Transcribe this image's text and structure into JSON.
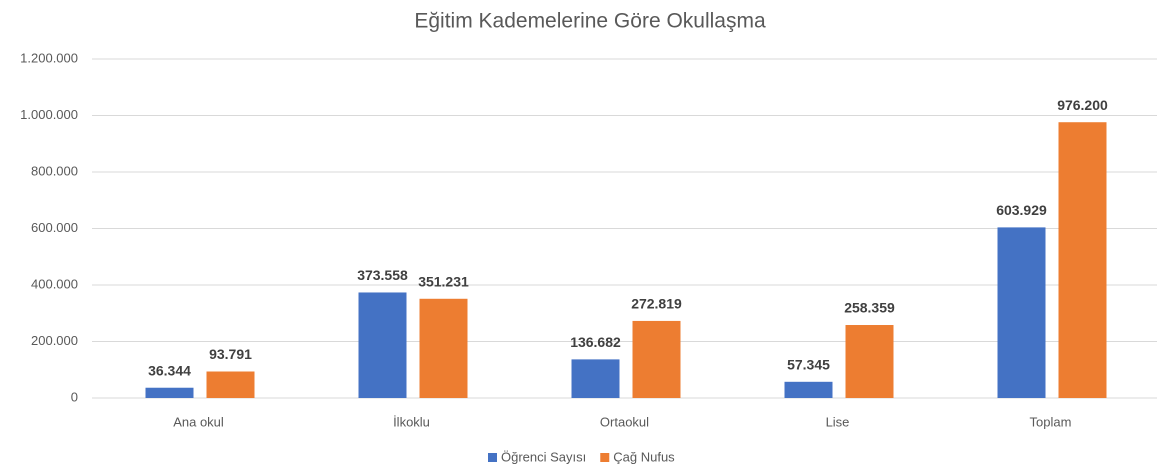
{
  "chart_data": {
    "type": "bar",
    "title": "Eğitim Kademelerine Göre Okullaşma",
    "categories": [
      "Ana okul",
      "İlkoklu",
      "Ortaokul",
      "Lise",
      "Toplam"
    ],
    "series": [
      {
        "name": "Öğrenci Sayısı",
        "color": "#4472c4",
        "values": [
          36344,
          373558,
          136682,
          57345,
          603929
        ],
        "value_labels": [
          "36.344",
          "373.558",
          "136.682",
          "57.345",
          "603.929"
        ]
      },
      {
        "name": "Çağ Nufus",
        "color": "#ed7d31",
        "values": [
          93791,
          351231,
          272819,
          258359,
          976200
        ],
        "value_labels": [
          "93.791",
          "351.231",
          "272.819",
          "258.359",
          "976.200"
        ]
      }
    ],
    "ylim": [
      0,
      1200000
    ],
    "yticks": [
      0,
      {
        "value": 200000,
        "label": "200.000"
      },
      {
        "value": 400000,
        "label": "400.000"
      },
      {
        "value": 600000,
        "label": "600.000"
      },
      {
        "value": 800000,
        "label": "800.000"
      },
      {
        "value": 1000000,
        "label": "1.000.000"
      },
      {
        "value": 1200000,
        "label": "1.200.000"
      }
    ],
    "grid": true,
    "legend": "bottom"
  }
}
